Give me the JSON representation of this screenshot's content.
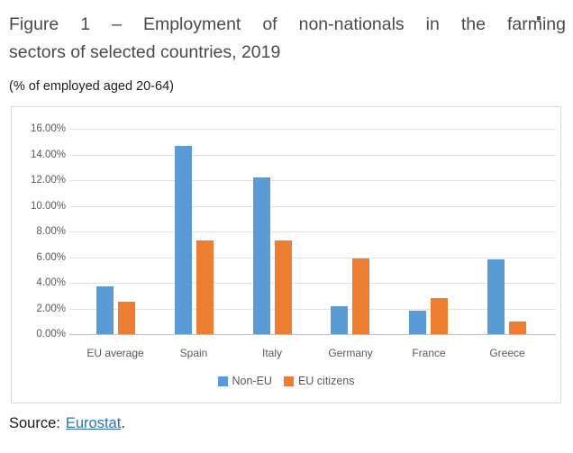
{
  "figure": {
    "title_line1": "Figure 1 – Employment of non-nationals in the farming",
    "title_line2": "sectors of selected countries, 2019",
    "subtitle": "(% of employed aged 20-64)"
  },
  "source": {
    "label": "Source:",
    "link_text": "Eurostat",
    "suffix": "."
  },
  "colors": {
    "bar_blue": "#5B9BD5",
    "bar_orange": "#ED7D31",
    "gridline": "#E2E2E2",
    "axis_line": "#BFBFBF",
    "chart_border": "#D9D9D9",
    "label_gray": "#595959",
    "title_gray": "#4A4A4A",
    "link_blue": "#2E74B5"
  },
  "chart_data": {
    "type": "bar",
    "title": "Figure 1 – Employment of non-nationals in the farming sectors of selected countries, 2019",
    "ylabel": "% of employed aged 20-64",
    "categories": [
      "EU average",
      "Spain",
      "Italy",
      "Germany",
      "France",
      "Greece"
    ],
    "series": [
      {
        "name": "Non-EU",
        "color": "#5B9BD5",
        "values": [
          3.7,
          14.7,
          12.2,
          2.2,
          1.8,
          5.8
        ]
      },
      {
        "name": "EU citizens",
        "color": "#ED7D31",
        "values": [
          2.5,
          7.3,
          7.3,
          5.9,
          2.8,
          1.0
        ]
      }
    ],
    "ylim": [
      0,
      16
    ],
    "ytick_step": 2,
    "yticks": [
      "0.00%",
      "2.00%",
      "4.00%",
      "6.00%",
      "8.00%",
      "10.00%",
      "12.00%",
      "14.00%",
      "16.00%"
    ],
    "grid": true,
    "legend_position": "bottom-center"
  }
}
